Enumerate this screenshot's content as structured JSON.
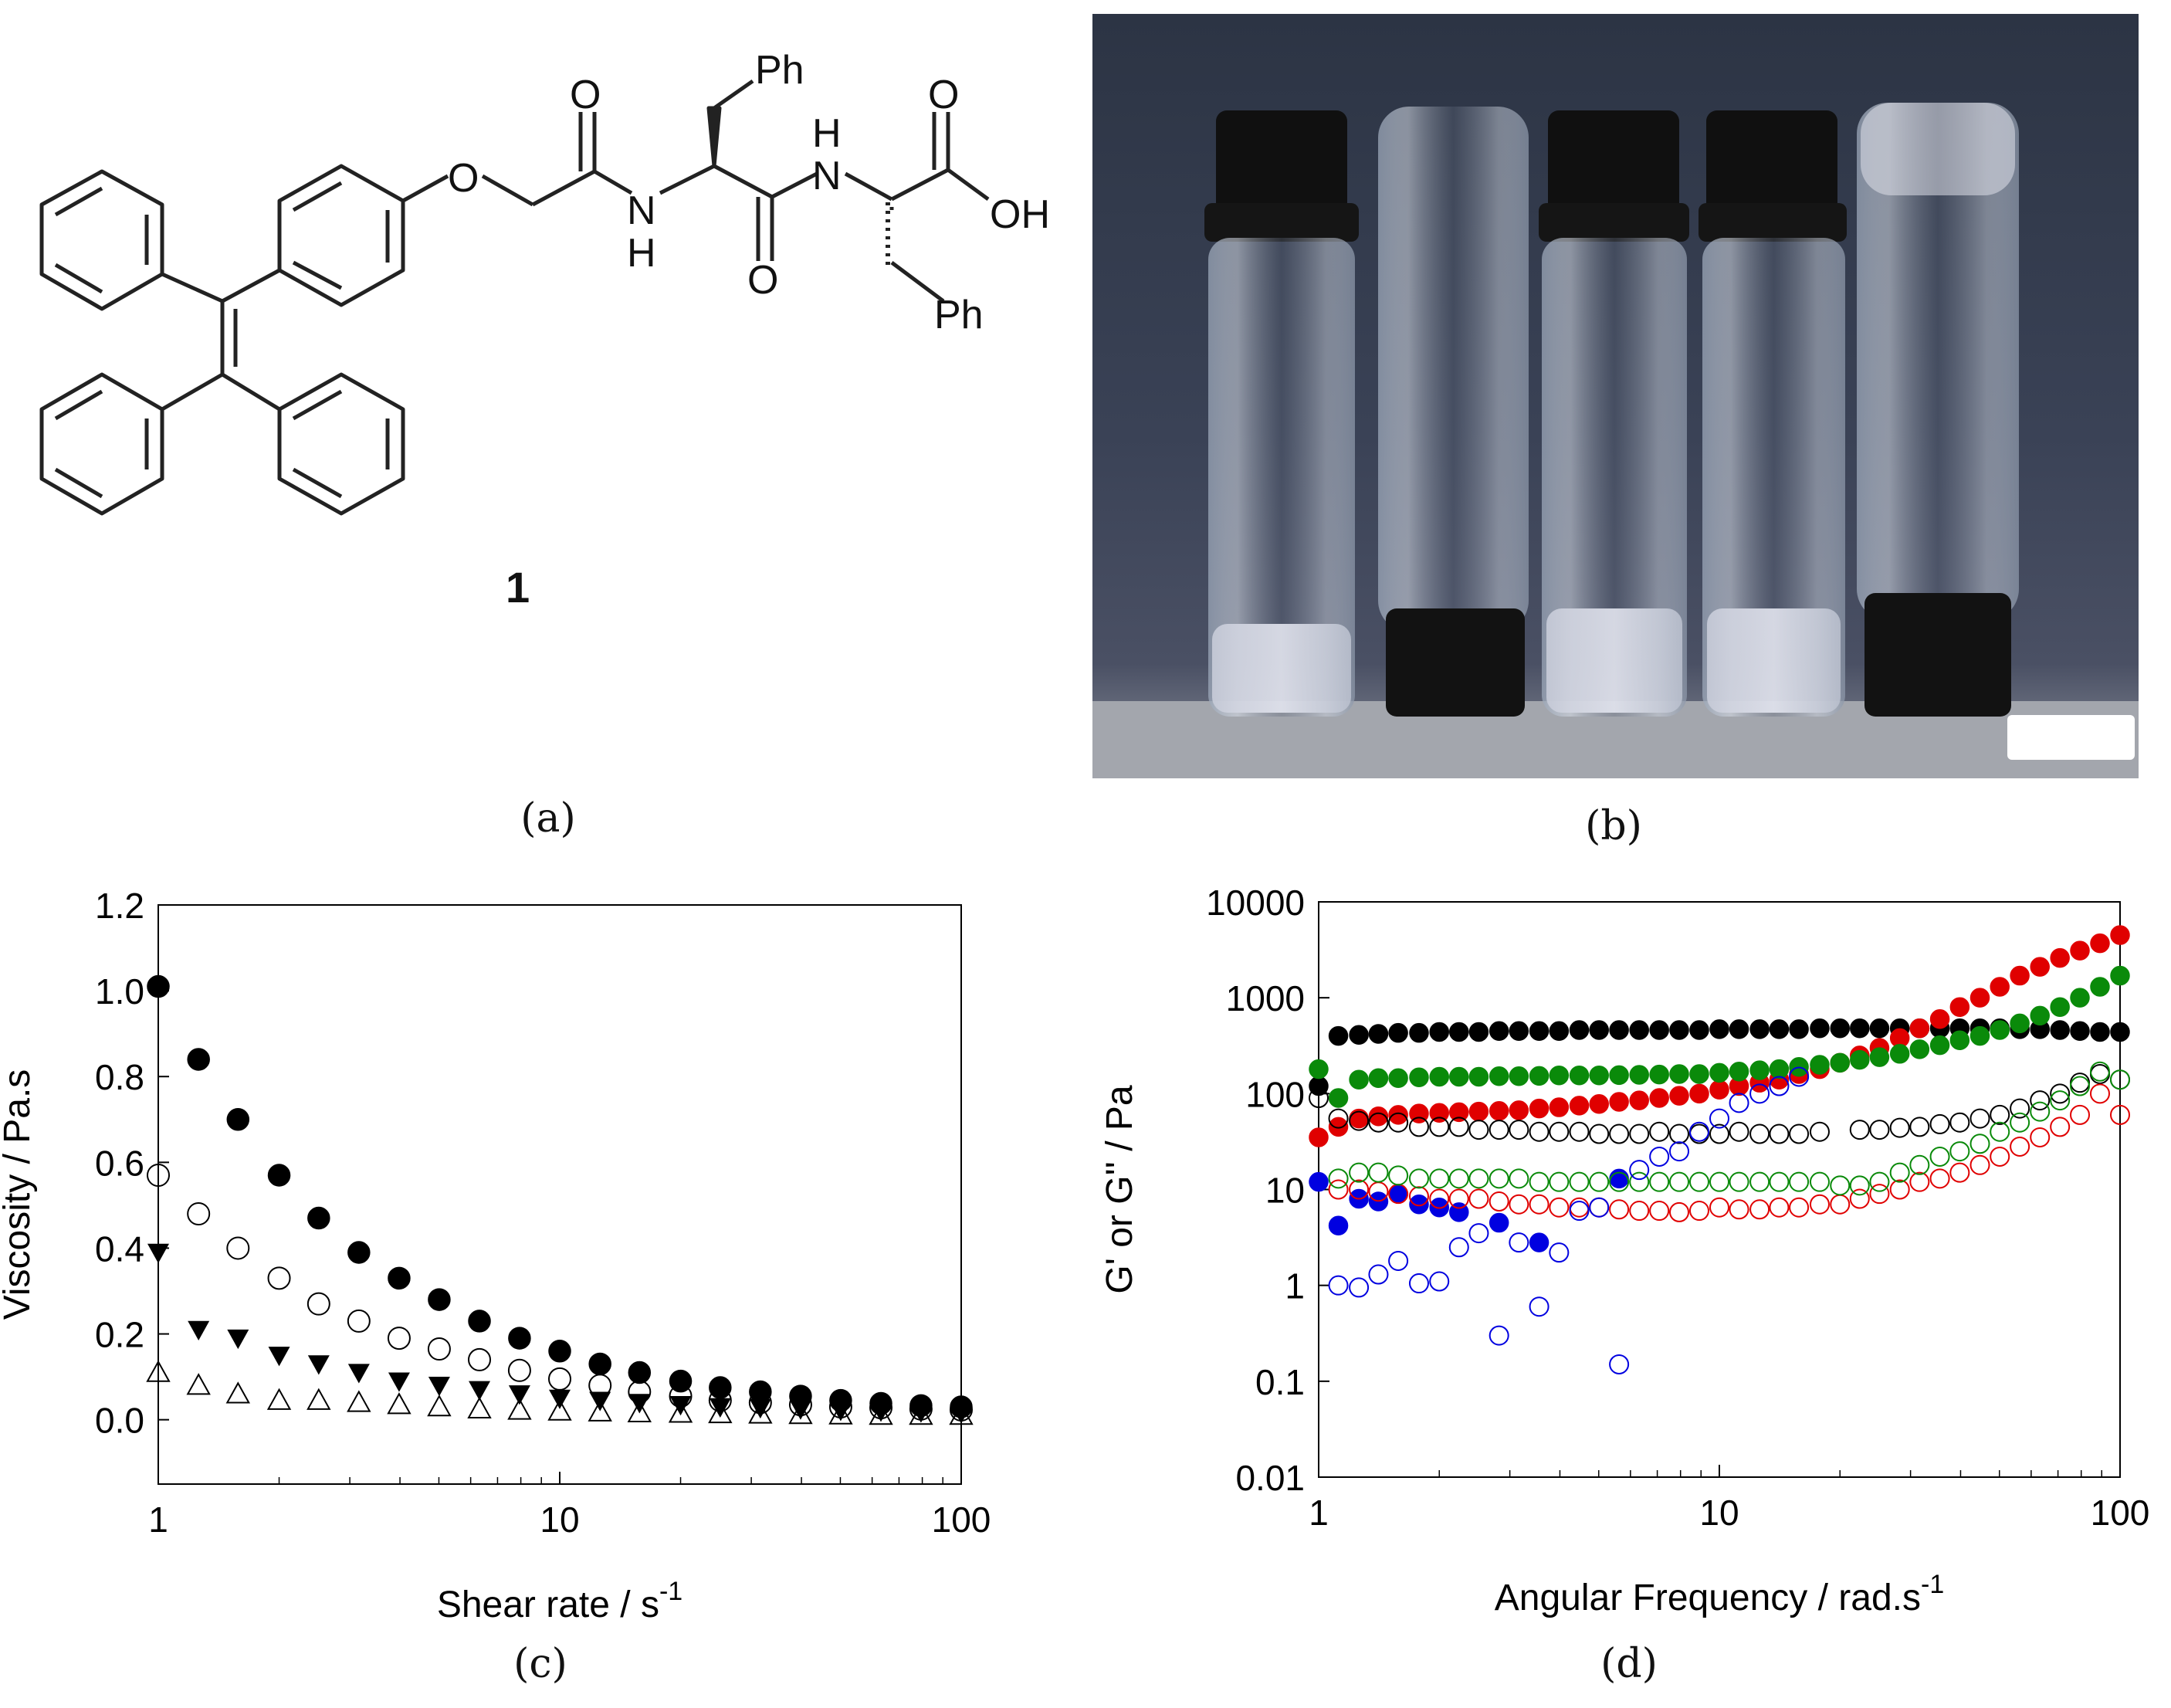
{
  "panels": {
    "a": {
      "caption": "(a)",
      "compound_label": "1",
      "atom_labels": {
        "ph_top": "Ph",
        "ph_bottom": "Ph",
        "o_ether": "O",
        "o_amide1": "O",
        "nh1_n": "N",
        "nh1_h": "H",
        "o_amide2": "O",
        "nh2_h": "H",
        "nh2_n": "N",
        "o_acid": "O",
        "oh": "OH"
      }
    },
    "b": {
      "caption": "(b)"
    },
    "c": {
      "caption": "(c)"
    },
    "d": {
      "caption": "(d)"
    }
  },
  "chart_data": [
    {
      "panel": "c",
      "type": "scatter",
      "xlabel_main": "Shear rate / s",
      "xlabel_sup": "-1",
      "ylabel": "Viscosity / Pa.s",
      "xscale": "log",
      "xlim": [
        1,
        100
      ],
      "ylim": [
        -0.15,
        1.2
      ],
      "yticks": [
        0.0,
        0.2,
        0.4,
        0.6,
        0.8,
        1.0,
        1.2
      ],
      "ytick_labels": [
        "0.0",
        "0.2",
        "0.4",
        "0.6",
        "0.8",
        "1.0",
        "1.2"
      ],
      "xticks": [
        1,
        10,
        100
      ],
      "xtick_labels": [
        "1",
        "10",
        "100"
      ],
      "x": [
        1,
        1.26,
        1.58,
        2,
        2.51,
        3.16,
        3.98,
        5.01,
        6.31,
        7.94,
        10,
        12.6,
        15.8,
        20,
        25.1,
        31.6,
        39.8,
        50.1,
        63.1,
        79.4,
        100
      ],
      "series": [
        {
          "marker": "filled-circle",
          "color": "#000000",
          "values": [
            1.01,
            0.84,
            0.7,
            0.57,
            0.47,
            0.39,
            0.33,
            0.28,
            0.23,
            0.19,
            0.16,
            0.13,
            0.11,
            0.09,
            0.075,
            0.065,
            0.055,
            0.045,
            0.038,
            0.033,
            0.03
          ]
        },
        {
          "marker": "open-circle",
          "color": "#000000",
          "values": [
            0.57,
            0.48,
            0.4,
            0.33,
            0.27,
            0.23,
            0.19,
            0.165,
            0.14,
            0.115,
            0.095,
            0.08,
            0.065,
            0.055,
            0.045,
            0.04,
            0.035,
            0.03,
            0.028,
            0.025,
            0.023
          ]
        },
        {
          "marker": "filled-triangle-down",
          "color": "#000000",
          "values": [
            0.39,
            0.21,
            0.19,
            0.15,
            0.13,
            0.11,
            0.09,
            0.08,
            0.07,
            0.06,
            0.05,
            0.045,
            0.04,
            0.035,
            0.03,
            0.028,
            0.025,
            0.022,
            0.02,
            0.018,
            0.016
          ]
        },
        {
          "marker": "open-triangle-up",
          "color": "#000000",
          "values": [
            0.11,
            0.08,
            0.06,
            0.045,
            0.045,
            0.04,
            0.035,
            0.03,
            0.025,
            0.022,
            0.02,
            0.018,
            0.016,
            0.015,
            0.014,
            0.013,
            0.012,
            0.011,
            0.01,
            0.01,
            0.01
          ]
        }
      ]
    },
    {
      "panel": "d",
      "type": "scatter",
      "xlabel_main": "Angular Frequency / rad.s",
      "xlabel_sup": "-1",
      "ylabel": "G' or G'' / Pa",
      "xscale": "log",
      "yscale": "log",
      "xlim": [
        1,
        100
      ],
      "ylim": [
        0.01,
        10000
      ],
      "yticks": [
        0.01,
        0.1,
        1,
        10,
        100,
        1000,
        10000
      ],
      "ytick_labels": [
        "0.01",
        "0.1",
        "1",
        "10",
        "100",
        "1000",
        "10000"
      ],
      "xticks": [
        1,
        10,
        100
      ],
      "xtick_labels": [
        "1",
        "10",
        "100"
      ],
      "series": [
        {
          "marker": "filled-circle",
          "color": "#000000",
          "x": [
            1,
            1.12,
            1.26,
            1.41,
            1.58,
            1.78,
            2,
            2.24,
            2.51,
            2.82,
            3.16,
            3.55,
            3.98,
            4.47,
            5.01,
            5.62,
            6.31,
            7.08,
            7.94,
            8.91,
            10,
            11.2,
            12.6,
            14.1,
            15.8,
            17.8,
            20,
            22.4,
            25.1,
            28.2,
            31.6,
            35.5,
            39.8,
            44.7,
            50.1,
            56.2,
            63.1,
            70.8,
            79.4,
            89.1,
            100
          ],
          "values": [
            120,
            400,
            410,
            420,
            430,
            430,
            440,
            440,
            440,
            450,
            450,
            450,
            450,
            460,
            460,
            460,
            460,
            460,
            460,
            460,
            470,
            470,
            470,
            470,
            470,
            480,
            480,
            480,
            480,
            480,
            480,
            480,
            480,
            480,
            480,
            470,
            470,
            460,
            450,
            440,
            440
          ]
        },
        {
          "marker": "filled-circle",
          "color": "#e00000",
          "x": [
            1,
            1.12,
            1.26,
            1.41,
            1.58,
            1.78,
            2,
            2.24,
            2.51,
            2.82,
            3.16,
            3.55,
            3.98,
            4.47,
            5.01,
            5.62,
            6.31,
            7.08,
            7.94,
            8.91,
            10,
            11.2,
            12.6,
            14.1,
            15.8,
            17.8,
            20,
            22.4,
            25.1,
            28.2,
            31.6,
            35.5,
            39.8,
            44.7,
            50.1,
            56.2,
            63.1,
            70.8,
            79.4,
            89.1,
            100
          ],
          "values": [
            35,
            45,
            55,
            58,
            60,
            62,
            63,
            64,
            65,
            66,
            67,
            70,
            72,
            75,
            78,
            82,
            85,
            90,
            95,
            100,
            110,
            120,
            130,
            140,
            160,
            180,
            210,
            250,
            300,
            380,
            480,
            600,
            800,
            1000,
            1300,
            1700,
            2100,
            2600,
            3100,
            3700,
            4500
          ]
        },
        {
          "marker": "filled-circle",
          "color": "#0a8a0a",
          "x": [
            1,
            1.12,
            1.26,
            1.41,
            1.58,
            1.78,
            2,
            2.24,
            2.51,
            2.82,
            3.16,
            3.55,
            3.98,
            4.47,
            5.01,
            5.62,
            6.31,
            7.08,
            7.94,
            8.91,
            10,
            11.2,
            12.6,
            14.1,
            15.8,
            17.8,
            20,
            22.4,
            25.1,
            28.2,
            31.6,
            35.5,
            39.8,
            44.7,
            50.1,
            56.2,
            63.1,
            70.8,
            79.4,
            89.1,
            100
          ],
          "values": [
            180,
            90,
            140,
            145,
            145,
            148,
            150,
            150,
            150,
            152,
            152,
            153,
            155,
            155,
            155,
            156,
            157,
            158,
            160,
            160,
            165,
            170,
            175,
            180,
            190,
            200,
            210,
            225,
            240,
            260,
            290,
            320,
            360,
            400,
            460,
            540,
            650,
            800,
            1000,
            1300,
            1700
          ]
        },
        {
          "marker": "filled-circle",
          "color": "#0000e0",
          "x": [
            1,
            1.12,
            1.26,
            1.41,
            1.58,
            1.78,
            2,
            2.24,
            2.82,
            3.55,
            5.62
          ],
          "values": [
            12,
            4.2,
            8,
            7.5,
            9,
            7,
            6.5,
            5.8,
            4.5,
            2.8,
            13
          ]
        },
        {
          "marker": "open-circle",
          "color": "#000000",
          "x": [
            1,
            1.12,
            1.26,
            1.41,
            1.58,
            1.78,
            2,
            2.24,
            2.51,
            2.82,
            3.16,
            3.55,
            3.98,
            4.47,
            5.01,
            5.62,
            6.31,
            7.08,
            7.94,
            8.91,
            10,
            11.2,
            12.6,
            14.1,
            15.8,
            17.8,
            22.4,
            25.1,
            28.2,
            31.6,
            35.5,
            39.8,
            44.7,
            50.1,
            56.2,
            63.1,
            70.8,
            79.4,
            89.1,
            100
          ],
          "values": [
            90,
            55,
            52,
            50,
            50,
            45,
            45,
            45,
            42,
            42,
            42,
            40,
            40,
            40,
            38,
            38,
            38,
            40,
            38,
            38,
            38,
            40,
            38,
            38,
            38,
            40,
            42,
            42,
            44,
            45,
            48,
            50,
            55,
            60,
            70,
            85,
            100,
            130,
            160,
            140
          ]
        },
        {
          "marker": "open-circle",
          "color": "#e00000",
          "x": [
            1.12,
            1.26,
            1.41,
            1.58,
            1.78,
            2,
            2.24,
            2.51,
            2.82,
            3.16,
            3.55,
            3.98,
            4.47,
            5.01,
            5.62,
            6.31,
            7.08,
            7.94,
            8.91,
            10,
            11.2,
            12.6,
            14.1,
            15.8,
            17.8,
            20,
            22.4,
            25.1,
            28.2,
            31.6,
            35.5,
            39.8,
            44.7,
            50.1,
            56.2,
            63.1,
            70.8,
            79.4,
            89.1,
            100
          ],
          "values": [
            10,
            10,
            9.5,
            9,
            8.5,
            8,
            8,
            8,
            7.5,
            7,
            7,
            6.5,
            6.5,
            6.5,
            6.2,
            6,
            6,
            5.8,
            6,
            6.5,
            6.2,
            6.2,
            6.5,
            6.5,
            7,
            7,
            8,
            9,
            10,
            12,
            13,
            15,
            18,
            22,
            28,
            35,
            45,
            60,
            100,
            60
          ]
        },
        {
          "marker": "open-circle",
          "color": "#0a8a0a",
          "x": [
            1.12,
            1.26,
            1.41,
            1.58,
            1.78,
            2,
            2.24,
            2.51,
            2.82,
            3.16,
            3.55,
            3.98,
            4.47,
            5.01,
            5.62,
            6.31,
            7.08,
            7.94,
            8.91,
            10,
            11.2,
            12.6,
            14.1,
            15.8,
            17.8,
            20,
            22.4,
            25.1,
            28.2,
            31.6,
            35.5,
            39.8,
            44.7,
            50.1,
            56.2,
            63.1,
            70.8,
            79.4,
            89.1,
            100
          ],
          "values": [
            13,
            15,
            15,
            14,
            13,
            13,
            13,
            13,
            13,
            13,
            12,
            12,
            12,
            12,
            12,
            12,
            12,
            12,
            12,
            12,
            12,
            12,
            12,
            12,
            12,
            11,
            11,
            12,
            15,
            18,
            22,
            25,
            30,
            40,
            50,
            65,
            85,
            120,
            170,
            140
          ]
        },
        {
          "marker": "open-circle",
          "color": "#0000e0",
          "x": [
            1.12,
            1.26,
            1.41,
            1.58,
            1.78,
            2,
            2.24,
            2.51,
            2.82,
            3.16,
            3.55,
            3.98,
            4.47,
            5.01,
            5.62,
            6.31,
            7.08,
            7.94,
            8.91,
            10,
            11.2,
            12.6,
            14.1,
            15.8
          ],
          "values": [
            1,
            0.95,
            1.3,
            1.8,
            1.05,
            1.1,
            2.5,
            3.5,
            0.3,
            2.8,
            0.6,
            2.2,
            6,
            6.5,
            0.15,
            16,
            22,
            25,
            40,
            55,
            80,
            100,
            120,
            150
          ]
        }
      ]
    }
  ]
}
